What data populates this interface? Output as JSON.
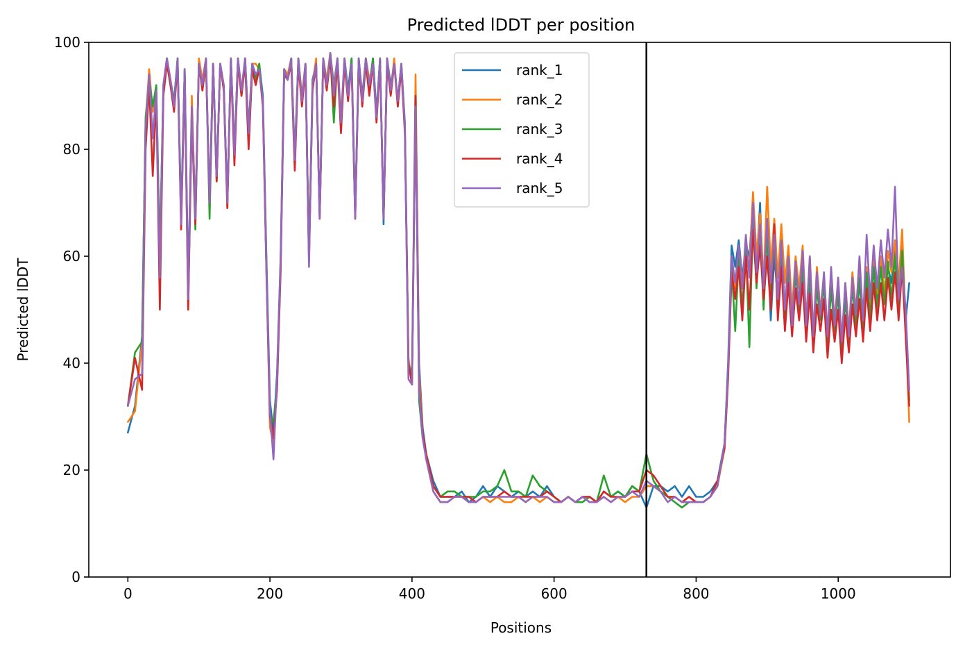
{
  "chart_data": {
    "type": "line",
    "title": "Predicted lDDT per position",
    "xlabel": "Positions",
    "ylabel": "Predicted lDDT",
    "xlim": [
      -55,
      1158
    ],
    "ylim": [
      0,
      100
    ],
    "xticks": [
      0,
      200,
      400,
      600,
      800,
      1000
    ],
    "yticks": [
      0,
      20,
      40,
      60,
      80,
      100
    ],
    "grid": false,
    "legend_position": "upper-center",
    "vline": {
      "x": 730,
      "color": "#000000"
    },
    "colors": [
      "#1f77b4",
      "#ff7f0e",
      "#2ca02c",
      "#d62728",
      "#9467bd"
    ],
    "x": [
      0,
      10,
      20,
      25,
      30,
      35,
      40,
      45,
      50,
      55,
      60,
      65,
      70,
      75,
      80,
      85,
      90,
      95,
      100,
      105,
      110,
      115,
      120,
      125,
      130,
      135,
      140,
      145,
      150,
      155,
      160,
      165,
      170,
      175,
      180,
      185,
      190,
      195,
      200,
      205,
      210,
      215,
      220,
      225,
      230,
      235,
      240,
      245,
      250,
      255,
      260,
      265,
      270,
      275,
      280,
      285,
      290,
      295,
      300,
      305,
      310,
      315,
      320,
      325,
      330,
      335,
      340,
      345,
      350,
      355,
      360,
      365,
      370,
      375,
      380,
      385,
      390,
      395,
      400,
      405,
      410,
      415,
      420,
      430,
      440,
      450,
      460,
      470,
      480,
      490,
      500,
      510,
      520,
      530,
      540,
      550,
      560,
      570,
      580,
      590,
      600,
      610,
      620,
      630,
      640,
      650,
      660,
      670,
      680,
      690,
      700,
      710,
      720,
      730,
      740,
      750,
      760,
      770,
      780,
      790,
      800,
      810,
      820,
      830,
      840,
      845,
      850,
      855,
      860,
      865,
      870,
      875,
      880,
      885,
      890,
      895,
      900,
      905,
      910,
      915,
      920,
      925,
      930,
      935,
      940,
      945,
      950,
      955,
      960,
      965,
      970,
      975,
      980,
      985,
      990,
      995,
      1000,
      1005,
      1010,
      1015,
      1020,
      1025,
      1030,
      1035,
      1040,
      1045,
      1050,
      1055,
      1060,
      1065,
      1070,
      1075,
      1080,
      1085,
      1090,
      1095,
      1100
    ],
    "series": [
      {
        "name": "rank_1",
        "values": [
          27,
          32,
          45,
          85,
          93,
          88,
          91,
          60,
          92,
          97,
          93,
          89,
          97,
          67,
          95,
          55,
          88,
          68,
          96,
          92,
          97,
          70,
          96,
          75,
          96,
          92,
          70,
          97,
          80,
          97,
          90,
          97,
          84,
          96,
          93,
          96,
          90,
          60,
          33,
          27,
          38,
          60,
          95,
          93,
          97,
          77,
          97,
          89,
          96,
          60,
          93,
          96,
          68,
          97,
          92,
          98,
          92,
          97,
          85,
          97,
          91,
          97,
          68,
          97,
          90,
          97,
          92,
          97,
          87,
          97,
          66,
          97,
          92,
          96,
          89,
          96,
          85,
          40,
          38,
          92,
          40,
          28,
          23,
          18,
          15,
          15,
          15,
          16,
          14,
          15,
          17,
          15,
          17,
          16,
          15,
          16,
          15,
          16,
          15,
          17,
          15,
          14,
          15,
          14,
          15,
          15,
          14,
          16,
          15,
          16,
          15,
          17,
          16,
          13,
          17,
          17,
          16,
          17,
          15,
          17,
          15,
          15,
          16,
          18,
          25,
          40,
          62,
          58,
          63,
          56,
          62,
          60,
          70,
          58,
          70,
          52,
          66,
          48,
          60,
          52,
          63,
          48,
          59,
          47,
          58,
          50,
          60,
          47,
          58,
          45,
          55,
          50,
          56,
          45,
          55,
          48,
          54,
          44,
          52,
          45,
          54,
          48,
          55,
          47,
          56,
          50,
          58,
          52,
          60,
          52,
          58,
          55,
          62,
          52,
          62,
          48,
          55
        ]
      },
      {
        "name": "rank_2",
        "values": [
          29,
          31,
          44,
          85,
          95,
          87,
          90,
          59,
          92,
          97,
          93,
          88,
          97,
          66,
          95,
          50,
          90,
          67,
          97,
          93,
          97,
          69,
          96,
          74,
          96,
          92,
          69,
          97,
          79,
          97,
          91,
          97,
          83,
          96,
          96,
          95,
          89,
          58,
          28,
          25,
          36,
          59,
          95,
          94,
          97,
          78,
          97,
          90,
          96,
          59,
          92,
          97,
          67,
          97,
          93,
          98,
          91,
          97,
          86,
          97,
          90,
          96,
          67,
          97,
          89,
          97,
          93,
          96,
          86,
          97,
          67,
          97,
          91,
          97,
          88,
          96,
          84,
          41,
          36,
          94,
          38,
          27,
          22,
          16,
          14,
          14,
          15,
          15,
          14,
          14,
          15,
          14,
          15,
          14,
          14,
          15,
          14,
          15,
          14,
          15,
          14,
          14,
          15,
          14,
          15,
          14,
          14,
          15,
          14,
          15,
          14,
          15,
          15,
          17,
          17,
          16,
          15,
          15,
          14,
          15,
          14,
          14,
          15,
          17,
          24,
          38,
          60,
          54,
          62,
          55,
          61,
          58,
          72,
          60,
          68,
          55,
          73,
          58,
          67,
          56,
          66,
          55,
          62,
          50,
          60,
          54,
          62,
          48,
          60,
          46,
          58,
          50,
          56,
          46,
          57,
          48,
          56,
          44,
          55,
          46,
          57,
          50,
          58,
          49,
          58,
          51,
          60,
          53,
          60,
          53,
          61,
          57,
          63,
          55,
          65,
          47,
          29
        ]
      },
      {
        "name": "rank_3",
        "values": [
          32,
          42,
          44,
          86,
          93,
          88,
          92,
          60,
          91,
          97,
          92,
          89,
          97,
          68,
          95,
          52,
          87,
          65,
          96,
          91,
          97,
          67,
          96,
          74,
          96,
          92,
          70,
          97,
          79,
          97,
          90,
          97,
          81,
          95,
          93,
          96,
          89,
          59,
          30,
          29,
          36,
          58,
          94,
          93,
          97,
          79,
          97,
          89,
          96,
          60,
          92,
          96,
          68,
          97,
          92,
          98,
          85,
          97,
          84,
          97,
          90,
          97,
          68,
          97,
          89,
          97,
          91,
          97,
          86,
          97,
          67,
          97,
          91,
          96,
          89,
          96,
          84,
          40,
          37,
          90,
          33,
          26,
          23,
          17,
          15,
          16,
          16,
          15,
          15,
          15,
          16,
          16,
          17,
          20,
          16,
          16,
          15,
          19,
          17,
          16,
          15,
          14,
          15,
          14,
          14,
          15,
          14,
          19,
          15,
          16,
          15,
          17,
          16,
          23,
          18,
          16,
          15,
          14,
          13,
          14,
          14,
          14,
          15,
          17,
          25,
          39,
          58,
          46,
          60,
          50,
          62,
          43,
          67,
          54,
          65,
          50,
          64,
          52,
          63,
          50,
          60,
          48,
          58,
          46,
          57,
          50,
          57,
          46,
          56,
          44,
          54,
          48,
          55,
          43,
          54,
          46,
          53,
          42,
          52,
          44,
          55,
          47,
          56,
          46,
          57,
          48,
          58,
          50,
          58,
          51,
          59,
          52,
          60,
          50,
          61,
          48,
          33
        ]
      },
      {
        "name": "rank_4",
        "values": [
          32,
          41,
          35,
          80,
          92,
          75,
          90,
          50,
          90,
          96,
          92,
          87,
          96,
          65,
          94,
          50,
          86,
          66,
          96,
          91,
          96,
          70,
          96,
          74,
          96,
          91,
          69,
          96,
          77,
          96,
          90,
          96,
          80,
          95,
          92,
          95,
          88,
          57,
          30,
          26,
          35,
          57,
          94,
          93,
          96,
          76,
          96,
          88,
          95,
          59,
          91,
          96,
          67,
          96,
          91,
          97,
          88,
          96,
          83,
          96,
          89,
          96,
          67,
          96,
          88,
          96,
          90,
          96,
          85,
          96,
          67,
          96,
          90,
          96,
          88,
          95,
          83,
          40,
          36,
          90,
          36,
          27,
          23,
          17,
          15,
          15,
          15,
          15,
          15,
          14,
          15,
          15,
          15,
          16,
          15,
          15,
          15,
          15,
          15,
          16,
          15,
          14,
          15,
          14,
          15,
          15,
          14,
          16,
          15,
          15,
          15,
          16,
          16,
          20,
          19,
          17,
          15,
          15,
          14,
          15,
          14,
          14,
          15,
          18,
          24,
          37,
          57,
          52,
          58,
          48,
          60,
          50,
          65,
          55,
          62,
          52,
          60,
          50,
          66,
          48,
          58,
          46,
          55,
          45,
          54,
          48,
          55,
          44,
          53,
          42,
          51,
          46,
          52,
          41,
          50,
          44,
          50,
          40,
          49,
          42,
          51,
          45,
          52,
          44,
          54,
          46,
          55,
          48,
          55,
          48,
          56,
          50,
          57,
          48,
          58,
          45,
          32
        ]
      },
      {
        "name": "rank_5",
        "values": [
          32,
          37,
          38,
          84,
          94,
          82,
          91,
          56,
          92,
          97,
          93,
          88,
          97,
          66,
          95,
          52,
          88,
          67,
          96,
          92,
          97,
          70,
          96,
          75,
          96,
          92,
          70,
          97,
          79,
          97,
          91,
          97,
          83,
          96,
          94,
          95,
          89,
          58,
          31,
          22,
          37,
          59,
          95,
          93,
          97,
          78,
          97,
          89,
          96,
          58,
          92,
          96,
          67,
          97,
          92,
          98,
          90,
          97,
          85,
          97,
          90,
          96,
          67,
          97,
          89,
          97,
          92,
          96,
          86,
          97,
          67,
          97,
          91,
          96,
          89,
          96,
          84,
          37,
          36,
          88,
          35,
          26,
          22,
          16,
          14,
          14,
          15,
          15,
          14,
          14,
          15,
          15,
          15,
          15,
          15,
          15,
          14,
          15,
          15,
          15,
          14,
          14,
          15,
          14,
          15,
          14,
          14,
          15,
          14,
          15,
          15,
          16,
          15,
          18,
          17,
          16,
          14,
          15,
          14,
          14,
          14,
          14,
          15,
          17,
          25,
          39,
          60,
          55,
          62,
          54,
          64,
          56,
          70,
          57,
          66,
          54,
          67,
          55,
          64,
          52,
          63,
          50,
          60,
          47,
          59,
          51,
          61,
          47,
          60,
          45,
          57,
          49,
          57,
          45,
          58,
          47,
          56,
          44,
          55,
          45,
          56,
          49,
          60,
          48,
          64,
          52,
          62,
          54,
          63,
          56,
          65,
          58,
          73,
          52,
          58,
          50,
          35
        ]
      }
    ]
  }
}
